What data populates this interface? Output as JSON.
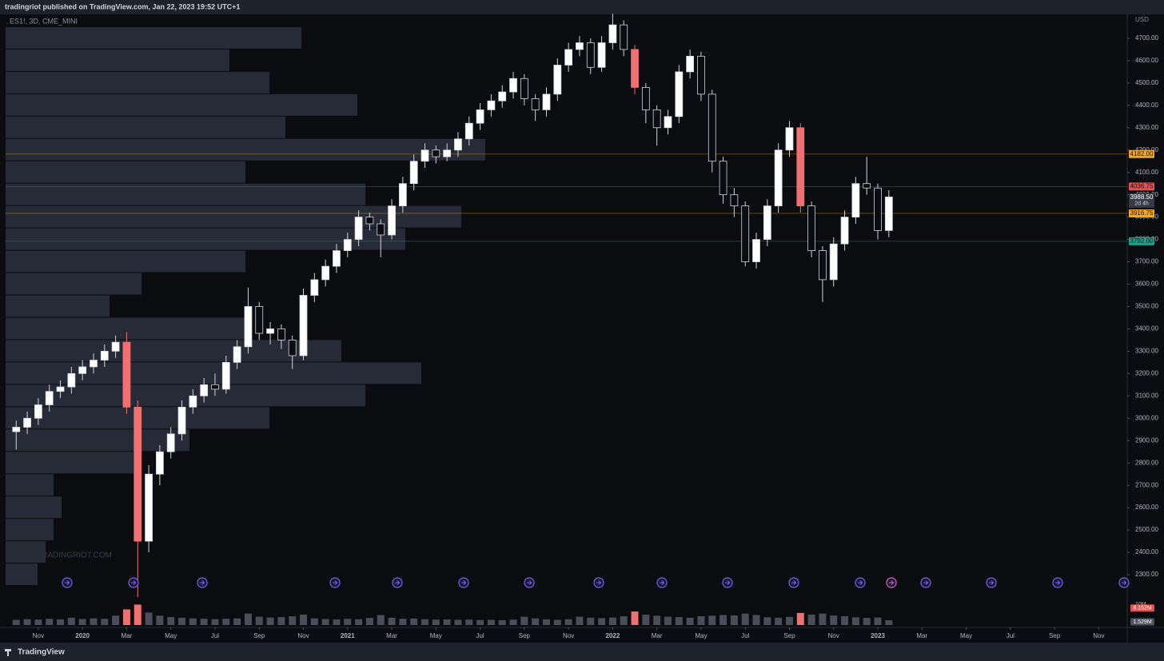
{
  "header": {
    "published": "tradingriot published on TradingView.com, Jan 22, 2023 19:52 UTC+1"
  },
  "chart_data": {
    "type": "candlestick",
    "symbol": "ES1!, 3D, CME_MINI",
    "currency": "USD",
    "watermark": "TRADINGRIOT.COM",
    "up_color": "#ffffff",
    "down_color": "#0b0c10",
    "wick_color": "#d1d4dc",
    "highlight_color": "#ef7070",
    "highlighted": [
      10,
      11,
      56,
      71
    ],
    "x": [
      0,
      0.5,
      1,
      1.5,
      2,
      2.5,
      3,
      3.5,
      4,
      4.5,
      5,
      5.5,
      6,
      6.5,
      7,
      7.5,
      8,
      8.5,
      9,
      9.5,
      10,
      10.5,
      11,
      11.5,
      12,
      12.5,
      13,
      13.5,
      14,
      14.5,
      15,
      15.5,
      16,
      16.5,
      17,
      17.5,
      18,
      18.5,
      19,
      19.5,
      20,
      20.5,
      21,
      21.5,
      22,
      22.5,
      23,
      23.5,
      24,
      24.5,
      25,
      25.5,
      26,
      26.5,
      27,
      27.5,
      28,
      28.5,
      29,
      29.5,
      30,
      30.5,
      31,
      31.5,
      32,
      32.5,
      33,
      33.5,
      34,
      34.5,
      35,
      35.5,
      36,
      36.5,
      37,
      37.5,
      38,
      38.5,
      39,
      39.5
    ],
    "open": [
      2940,
      2960,
      3000,
      3060,
      3120,
      3140,
      3200,
      3230,
      3260,
      3300,
      3340,
      3050,
      2450,
      2750,
      2850,
      2930,
      3050,
      3100,
      3150,
      3130,
      3250,
      3320,
      3500,
      3380,
      3400,
      3350,
      3280,
      3550,
      3620,
      3680,
      3750,
      3800,
      3900,
      3870,
      3820,
      3950,
      4050,
      4150,
      4200,
      4170,
      4200,
      4250,
      4320,
      4380,
      4420,
      4460,
      4520,
      4430,
      4380,
      4450,
      4580,
      4650,
      4680,
      4570,
      4680,
      4760,
      4650,
      4480,
      4380,
      4300,
      4350,
      4550,
      4620,
      4450,
      4150,
      4000,
      3950,
      3700,
      3800,
      3950,
      4200,
      4300,
      3950,
      3750,
      3620,
      3780,
      3900,
      4050,
      4030,
      3840
    ],
    "high": [
      2990,
      3030,
      3090,
      3150,
      3170,
      3230,
      3260,
      3290,
      3330,
      3370,
      3385,
      3080,
      2790,
      2880,
      2960,
      3080,
      3130,
      3180,
      3200,
      3280,
      3350,
      3585,
      3520,
      3430,
      3420,
      3370,
      3580,
      3650,
      3710,
      3780,
      3830,
      3930,
      3920,
      3890,
      3980,
      4080,
      4180,
      4230,
      4220,
      4230,
      4280,
      4350,
      4410,
      4450,
      4490,
      4550,
      4540,
      4450,
      4480,
      4610,
      4680,
      4710,
      4700,
      4710,
      4810,
      4780,
      4670,
      4500,
      4400,
      4380,
      4580,
      4650,
      4640,
      4470,
      4170,
      4030,
      3970,
      3830,
      3980,
      4230,
      4330,
      4320,
      3970,
      3770,
      3810,
      3930,
      4080,
      4170,
      4050,
      4020
    ],
    "low": [
      2860,
      2930,
      2970,
      3030,
      3090,
      3110,
      3170,
      3200,
      3230,
      3270,
      3020,
      2200,
      2400,
      2700,
      2820,
      2900,
      3020,
      3070,
      3100,
      3110,
      3220,
      3290,
      3350,
      3330,
      3310,
      3220,
      3260,
      3520,
      3590,
      3650,
      3720,
      3770,
      3840,
      3720,
      3800,
      3920,
      4020,
      4120,
      4140,
      4150,
      4170,
      4220,
      4290,
      4350,
      4390,
      4430,
      4400,
      4330,
      4350,
      4420,
      4550,
      4620,
      4540,
      4550,
      4650,
      4620,
      4450,
      4320,
      4220,
      4270,
      4320,
      4520,
      4420,
      4100,
      3960,
      3900,
      3680,
      3670,
      3770,
      3920,
      4170,
      3920,
      3720,
      3520,
      3590,
      3750,
      3870,
      4000,
      3800,
      3810
    ],
    "close": [
      2960,
      3000,
      3060,
      3120,
      3140,
      3200,
      3230,
      3260,
      3300,
      3340,
      3050,
      2450,
      2750,
      2850,
      2930,
      3050,
      3100,
      3150,
      3130,
      3250,
      3320,
      3500,
      3380,
      3400,
      3350,
      3280,
      3550,
      3620,
      3680,
      3750,
      3800,
      3900,
      3870,
      3820,
      3950,
      4050,
      4150,
      4200,
      4170,
      4200,
      4250,
      4320,
      4380,
      4420,
      4460,
      4520,
      4430,
      4380,
      4450,
      4580,
      4650,
      4680,
      4570,
      4680,
      4760,
      4650,
      4480,
      4380,
      4300,
      4350,
      4550,
      4620,
      4450,
      4150,
      4000,
      3950,
      3700,
      3800,
      3950,
      4200,
      4300,
      3950,
      3750,
      3620,
      3780,
      3900,
      4050,
      4030,
      3840,
      3990
    ],
    "xlim": [
      -0.48,
      50.29
    ],
    "xticks": [
      {
        "value": 1,
        "label": "Nov"
      },
      {
        "value": 3,
        "label": "2020"
      },
      {
        "value": 5,
        "label": "Mar"
      },
      {
        "value": 7,
        "label": "May"
      },
      {
        "value": 9,
        "label": "Jul"
      },
      {
        "value": 11,
        "label": "Sep"
      },
      {
        "value": 13,
        "label": "Nov"
      },
      {
        "value": 15,
        "label": "2021"
      },
      {
        "value": 17,
        "label": "Mar"
      },
      {
        "value": 19,
        "label": "May"
      },
      {
        "value": 21,
        "label": "Jul"
      },
      {
        "value": 23,
        "label": "Sep"
      },
      {
        "value": 25,
        "label": "Nov"
      },
      {
        "value": 27,
        "label": "2022"
      },
      {
        "value": 29,
        "label": "Mar"
      },
      {
        "value": 31,
        "label": "May"
      },
      {
        "value": 33,
        "label": "Jul"
      },
      {
        "value": 35,
        "label": "Sep"
      },
      {
        "value": 37,
        "label": "Nov"
      },
      {
        "value": 39,
        "label": "2023"
      },
      {
        "value": 41,
        "label": "Mar"
      },
      {
        "value": 43,
        "label": "May"
      },
      {
        "value": 45,
        "label": "Jul"
      },
      {
        "value": 47,
        "label": "Sep"
      },
      {
        "value": 49,
        "label": "Nov"
      }
    ],
    "ylim": [
      2225,
      4807
    ],
    "yticks": [
      {
        "value": 2300,
        "label": "2300.00"
      },
      {
        "value": 2400,
        "label": "2400.00"
      },
      {
        "value": 2500,
        "label": "2500.00"
      },
      {
        "value": 2600,
        "label": "2600.00"
      },
      {
        "value": 2700,
        "label": "2700.00"
      },
      {
        "value": 2800,
        "label": "2800.00"
      },
      {
        "value": 2900,
        "label": "2900.00"
      },
      {
        "value": 3000,
        "label": "3000.00"
      },
      {
        "value": 3100,
        "label": "3100.00"
      },
      {
        "value": 3200,
        "label": "3200.00"
      },
      {
        "value": 3300,
        "label": "3300.00"
      },
      {
        "value": 3400,
        "label": "3400.00"
      },
      {
        "value": 3500,
        "label": "3500.00"
      },
      {
        "value": 3600,
        "label": "3600.00"
      },
      {
        "value": 3700,
        "label": "3700.00"
      },
      {
        "value": 3800,
        "label": "3800.00"
      },
      {
        "value": 3900,
        "label": "3900.00"
      },
      {
        "value": 4000,
        "label": "4000.00"
      },
      {
        "value": 4100,
        "label": "4100.00"
      },
      {
        "value": 4200,
        "label": "4200.00"
      },
      {
        "value": 4300,
        "label": "4300.00"
      },
      {
        "value": 4400,
        "label": "4400.00"
      },
      {
        "value": 4500,
        "label": "4500.00"
      },
      {
        "value": 4600,
        "label": "4600.00"
      },
      {
        "value": 4700,
        "label": "4700.00"
      }
    ],
    "levels": [
      {
        "value": 4182,
        "label": "4182.00",
        "color": "#f5a623"
      },
      {
        "value": 4036.75,
        "label": "4036.75",
        "color": "#e05252"
      },
      {
        "value": 3916.75,
        "label": "3916.75",
        "color": "#f5a623"
      },
      {
        "value": 3792,
        "label": "3792.00",
        "color": "#1fa187"
      }
    ],
    "last_price": {
      "value": 3988.5,
      "label": "3988.50",
      "countdown": "2d 4h"
    },
    "volume": {
      "values": [
        2.5,
        2.8,
        2.6,
        3,
        2.7,
        3.5,
        2.9,
        3.2,
        3,
        4.5,
        7.5,
        9.8,
        6,
        4.5,
        3.8,
        3.5,
        3.2,
        3,
        2.8,
        3,
        3.2,
        5.5,
        4,
        3.6,
        3.8,
        4.2,
        5,
        3.2,
        2.9,
        2.7,
        3,
        2.8,
        3.4,
        4.8,
        3.5,
        3,
        3.1,
        2.8,
        2.6,
        2.7,
        2.5,
        2.6,
        2.4,
        2.5,
        2.3,
        2.6,
        4,
        3.2,
        2.7,
        2.5,
        2.8,
        4,
        3.5,
        3.3,
        3.6,
        4.2,
        6.5,
        5,
        4.5,
        4,
        3.8,
        3.5,
        4.2,
        4.5,
        4.8,
        4.6,
        5.5,
        4.8,
        3.7,
        3.5,
        3.9,
        5.8,
        5,
        5.5,
        4.6,
        4.2,
        3.7,
        3.4,
        3.6,
        2.3
      ],
      "color": "#4a4e59",
      "ylim": [
        0,
        11.5
      ],
      "yticks": [
        {
          "value": 10,
          "label": "10M"
        }
      ],
      "markers": [
        {
          "value": 8.152,
          "label": "8.152M",
          "color": "#e05252"
        },
        {
          "value": 1.529,
          "label": "1.529M",
          "color": "#50535e"
        }
      ]
    },
    "volume_profile": {
      "color": "#272b38",
      "prices": [
        2300,
        2400,
        2500,
        2600,
        2700,
        2800,
        2900,
        3000,
        3100,
        3200,
        3300,
        3400,
        3500,
        3600,
        3700,
        3800,
        3900,
        4000,
        4100,
        4200,
        4300,
        4400,
        4500,
        4600,
        4700
      ],
      "values": [
        40,
        50,
        60,
        70,
        60,
        160,
        230,
        330,
        450,
        520,
        420,
        300,
        130,
        170,
        300,
        500,
        570,
        450,
        300,
        600,
        350,
        440,
        330,
        280,
        370
      ]
    }
  },
  "footer": {
    "brand": "TradingView"
  }
}
